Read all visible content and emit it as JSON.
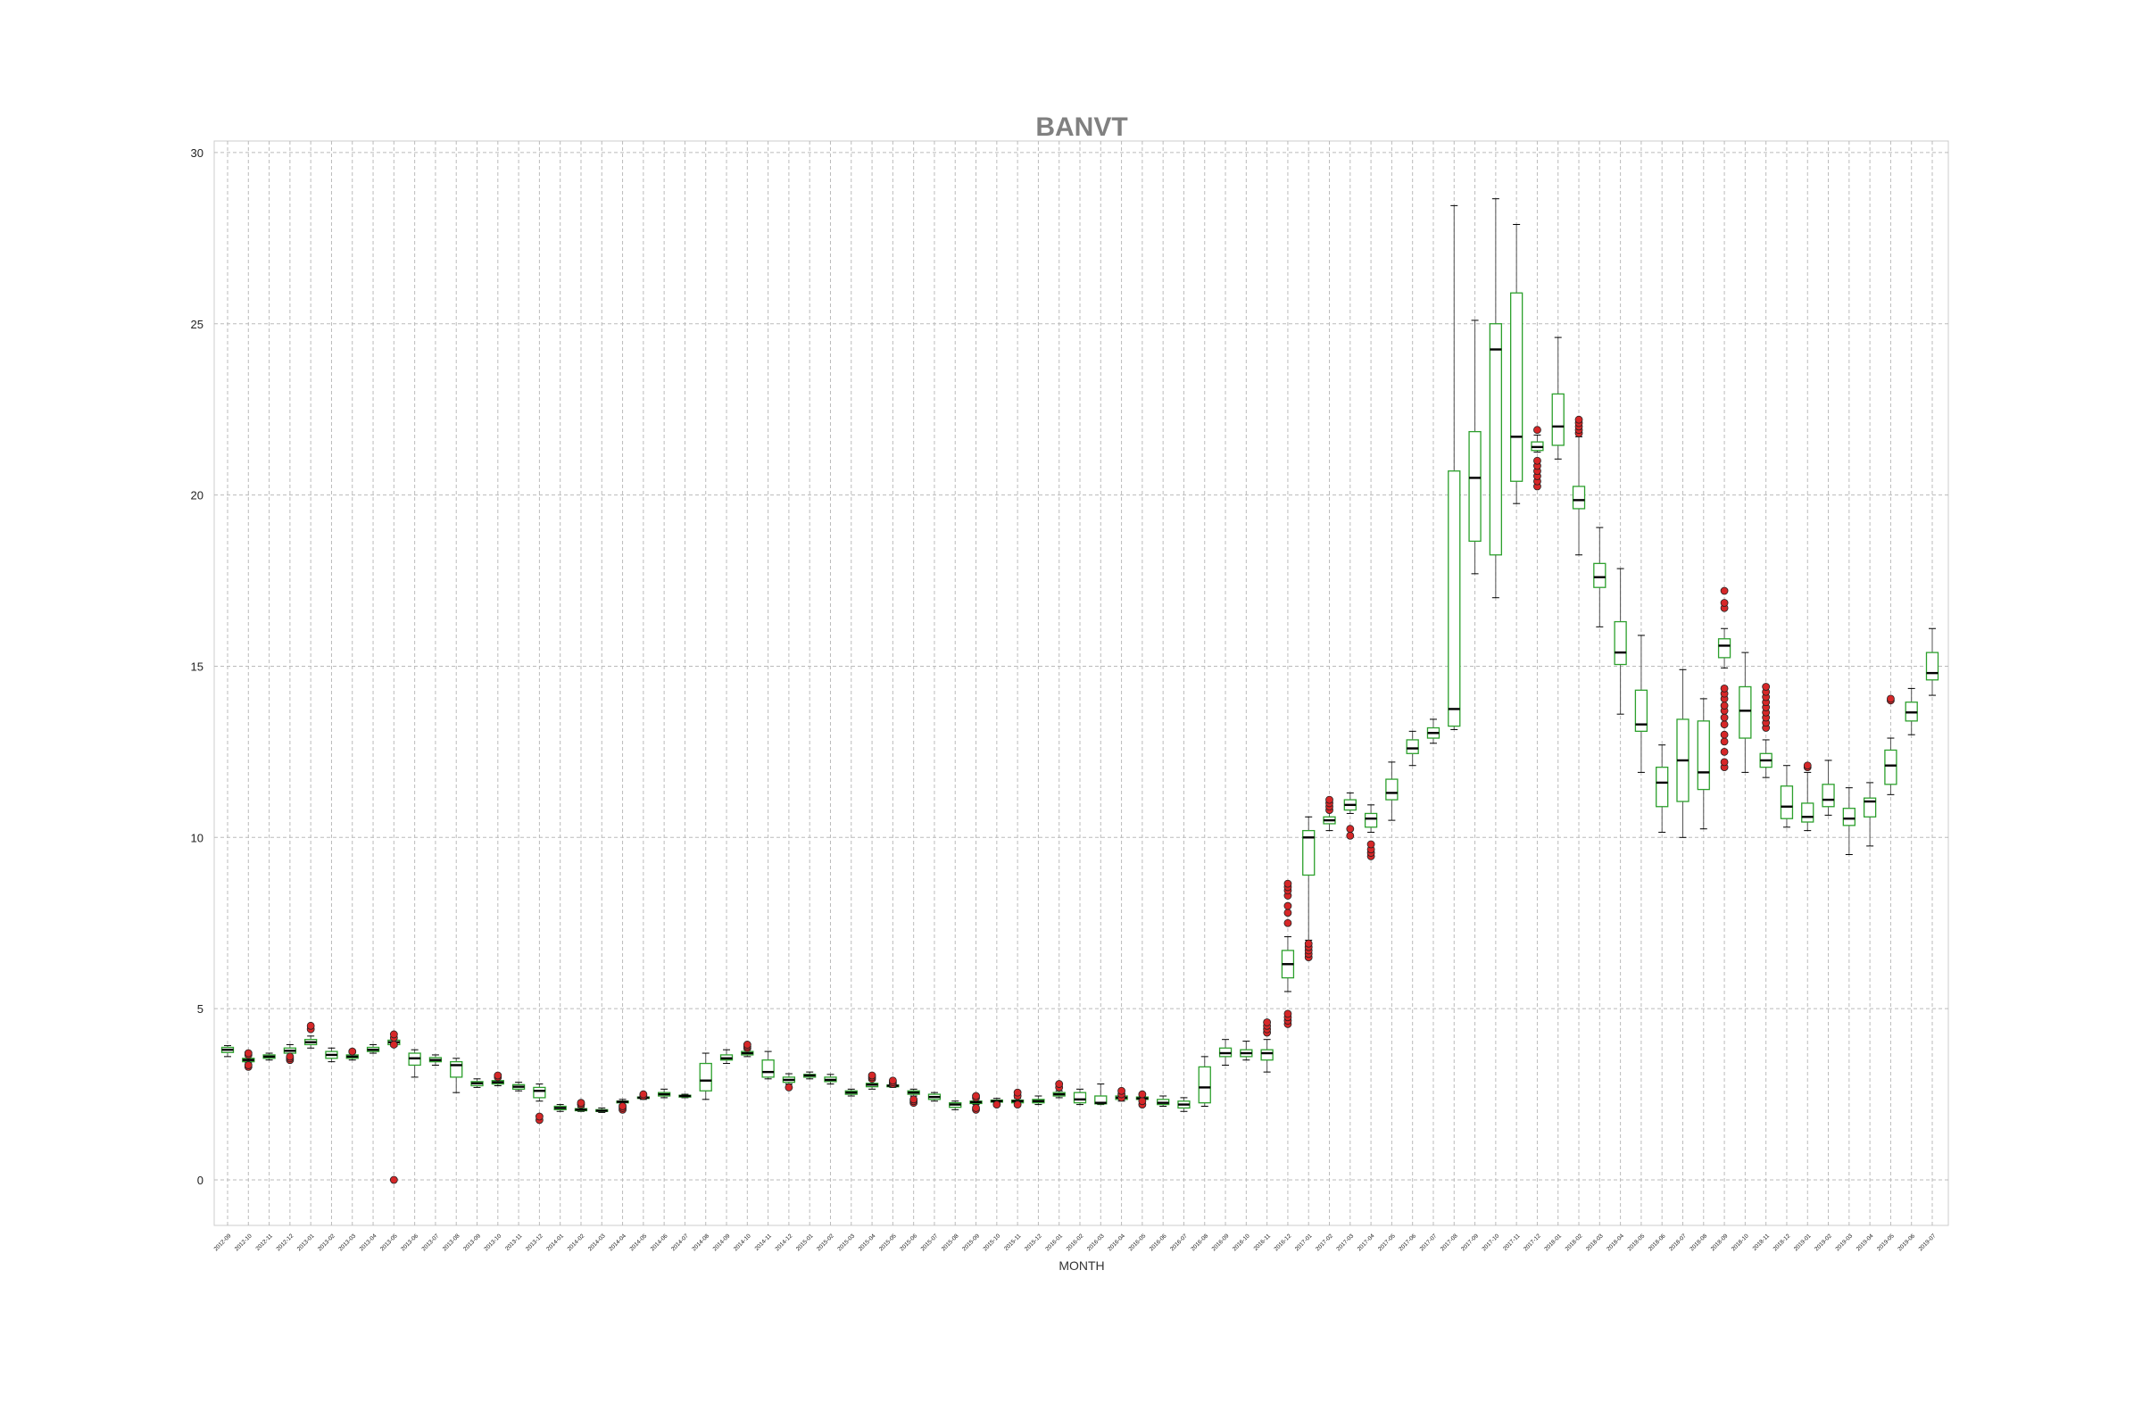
{
  "chart_data": {
    "type": "box",
    "title": "BANVT",
    "xlabel": "MONTH",
    "ylabel": "",
    "ylim": [
      -1.5,
      30.2
    ],
    "yticks": [
      0,
      5,
      10,
      15,
      20,
      25,
      30
    ],
    "grid": true,
    "colors": {
      "box": "#2ca02c",
      "median": "#000000",
      "whisker": "#555555",
      "outlier_fill": "#d62728",
      "outlier_edge": "#222222",
      "grid": "#bbbbbb",
      "title": "#808080"
    },
    "categories": [
      "2012-09",
      "2012-10",
      "2012-11",
      "2012-12",
      "2013-01",
      "2013-02",
      "2013-03",
      "2013-04",
      "2013-05",
      "2013-06",
      "2013-07",
      "2013-08",
      "2013-09",
      "2013-10",
      "2013-11",
      "2013-12",
      "2014-01",
      "2014-02",
      "2014-03",
      "2014-04",
      "2014-05",
      "2014-06",
      "2014-07",
      "2014-08",
      "2014-09",
      "2014-10",
      "2014-11",
      "2014-12",
      "2015-01",
      "2015-02",
      "2015-03",
      "2015-04",
      "2015-05",
      "2015-06",
      "2015-07",
      "2015-08",
      "2015-09",
      "2015-10",
      "2015-11",
      "2015-12",
      "2016-01",
      "2016-02",
      "2016-03",
      "2016-04",
      "2016-05",
      "2016-06",
      "2016-07",
      "2016-08",
      "2016-09",
      "2016-10",
      "2016-11",
      "2016-12",
      "2017-01",
      "2017-02",
      "2017-03",
      "2017-04",
      "2017-05",
      "2017-06",
      "2017-07",
      "2017-08",
      "2017-09",
      "2017-10",
      "2017-11",
      "2017-12",
      "2018-01",
      "2018-02",
      "2018-03",
      "2018-04",
      "2018-05",
      "2018-06",
      "2018-07",
      "2018-08",
      "2018-09",
      "2018-10",
      "2018-11",
      "2018-12",
      "2019-01",
      "2019-02",
      "2019-03",
      "2019-04",
      "2019-05",
      "2019-06",
      "2019-07"
    ],
    "boxes": [
      {
        "whislo": 3.6,
        "q1": 3.72,
        "med": 3.8,
        "q3": 3.87,
        "whishi": 3.92,
        "fliers": []
      },
      {
        "whislo": 3.42,
        "q1": 3.45,
        "med": 3.5,
        "q3": 3.55,
        "whishi": 3.6,
        "fliers": [
          3.3,
          3.35,
          3.65,
          3.7
        ]
      },
      {
        "whislo": 3.5,
        "q1": 3.55,
        "med": 3.6,
        "q3": 3.65,
        "whishi": 3.7,
        "fliers": []
      },
      {
        "whislo": 3.6,
        "q1": 3.7,
        "med": 3.77,
        "q3": 3.85,
        "whishi": 3.95,
        "fliers": [
          3.5,
          3.55,
          3.6
        ]
      },
      {
        "whislo": 3.85,
        "q1": 3.95,
        "med": 4.02,
        "q3": 4.1,
        "whishi": 4.2,
        "fliers": [
          4.4,
          4.5
        ]
      },
      {
        "whislo": 3.45,
        "q1": 3.55,
        "med": 3.65,
        "q3": 3.75,
        "whishi": 3.85,
        "fliers": []
      },
      {
        "whislo": 3.5,
        "q1": 3.55,
        "med": 3.6,
        "q3": 3.65,
        "whishi": 3.7,
        "fliers": [
          3.75
        ]
      },
      {
        "whislo": 3.7,
        "q1": 3.75,
        "med": 3.8,
        "q3": 3.87,
        "whishi": 3.95,
        "fliers": []
      },
      {
        "whislo": 3.9,
        "q1": 3.95,
        "med": 4.02,
        "q3": 4.08,
        "whishi": 4.15,
        "fliers": [
          0.0,
          3.95,
          4.15,
          4.25
        ]
      },
      {
        "whislo": 3.0,
        "q1": 3.35,
        "med": 3.55,
        "q3": 3.7,
        "whishi": 3.8,
        "fliers": []
      },
      {
        "whislo": 3.35,
        "q1": 3.45,
        "med": 3.5,
        "q3": 3.57,
        "whishi": 3.65,
        "fliers": []
      },
      {
        "whislo": 2.55,
        "q1": 3.0,
        "med": 3.35,
        "q3": 3.45,
        "whishi": 3.55,
        "fliers": []
      },
      {
        "whislo": 2.7,
        "q1": 2.75,
        "med": 2.82,
        "q3": 2.87,
        "whishi": 2.95,
        "fliers": []
      },
      {
        "whislo": 2.75,
        "q1": 2.8,
        "med": 2.85,
        "q3": 2.9,
        "whishi": 2.95,
        "fliers": [
          3.0,
          3.05
        ]
      },
      {
        "whislo": 2.6,
        "q1": 2.65,
        "med": 2.72,
        "q3": 2.78,
        "whishi": 2.85,
        "fliers": []
      },
      {
        "whislo": 2.3,
        "q1": 2.4,
        "med": 2.6,
        "q3": 2.7,
        "whishi": 2.8,
        "fliers": [
          1.75,
          1.85
        ]
      },
      {
        "whislo": 2.0,
        "q1": 2.05,
        "med": 2.1,
        "q3": 2.15,
        "whishi": 2.2,
        "fliers": []
      },
      {
        "whislo": 2.0,
        "q1": 2.02,
        "med": 2.05,
        "q3": 2.08,
        "whishi": 2.12,
        "fliers": [
          2.2,
          2.25
        ]
      },
      {
        "whislo": 1.97,
        "q1": 2.0,
        "med": 2.02,
        "q3": 2.05,
        "whishi": 2.1,
        "fliers": []
      },
      {
        "whislo": 2.2,
        "q1": 2.25,
        "med": 2.28,
        "q3": 2.3,
        "whishi": 2.35,
        "fliers": [
          2.05,
          2.1,
          2.15
        ]
      },
      {
        "whislo": 2.35,
        "q1": 2.38,
        "med": 2.4,
        "q3": 2.42,
        "whishi": 2.45,
        "fliers": [
          2.45,
          2.5
        ]
      },
      {
        "whislo": 2.4,
        "q1": 2.45,
        "med": 2.5,
        "q3": 2.55,
        "whishi": 2.65,
        "fliers": []
      },
      {
        "whislo": 2.4,
        "q1": 2.42,
        "med": 2.45,
        "q3": 2.47,
        "whishi": 2.5,
        "fliers": []
      },
      {
        "whislo": 2.35,
        "q1": 2.6,
        "med": 2.9,
        "q3": 3.4,
        "whishi": 3.7,
        "fliers": []
      },
      {
        "whislo": 3.4,
        "q1": 3.5,
        "med": 3.55,
        "q3": 3.65,
        "whishi": 3.8,
        "fliers": []
      },
      {
        "whislo": 3.6,
        "q1": 3.65,
        "med": 3.7,
        "q3": 3.75,
        "whishi": 3.8,
        "fliers": [
          3.85,
          3.9,
          3.95
        ]
      },
      {
        "whislo": 2.95,
        "q1": 3.0,
        "med": 3.15,
        "q3": 3.5,
        "whishi": 3.75,
        "fliers": []
      },
      {
        "whislo": 2.8,
        "q1": 2.85,
        "med": 2.92,
        "q3": 3.0,
        "whishi": 3.1,
        "fliers": [
          2.7
        ]
      },
      {
        "whislo": 2.95,
        "q1": 3.0,
        "med": 3.05,
        "q3": 3.08,
        "whishi": 3.15,
        "fliers": []
      },
      {
        "whislo": 2.8,
        "q1": 2.87,
        "med": 2.92,
        "q3": 3.0,
        "whishi": 3.08,
        "fliers": []
      },
      {
        "whislo": 2.45,
        "q1": 2.5,
        "med": 2.55,
        "q3": 2.6,
        "whishi": 2.65,
        "fliers": []
      },
      {
        "whislo": 2.65,
        "q1": 2.72,
        "med": 2.78,
        "q3": 2.82,
        "whishi": 2.9,
        "fliers": [
          2.95,
          3.0,
          3.05
        ]
      },
      {
        "whislo": 2.7,
        "q1": 2.72,
        "med": 2.75,
        "q3": 2.77,
        "whishi": 2.8,
        "fliers": [
          2.8,
          2.85,
          2.9
        ]
      },
      {
        "whislo": 2.45,
        "q1": 2.5,
        "med": 2.55,
        "q3": 2.6,
        "whishi": 2.65,
        "fliers": [
          2.25,
          2.3,
          2.35
        ]
      },
      {
        "whislo": 2.3,
        "q1": 2.35,
        "med": 2.42,
        "q3": 2.5,
        "whishi": 2.55,
        "fliers": []
      },
      {
        "whislo": 2.05,
        "q1": 2.12,
        "med": 2.2,
        "q3": 2.25,
        "whishi": 2.3,
        "fliers": []
      },
      {
        "whislo": 2.2,
        "q1": 2.23,
        "med": 2.27,
        "q3": 2.3,
        "whishi": 2.35,
        "fliers": [
          2.05,
          2.1,
          2.4,
          2.45
        ]
      },
      {
        "whislo": 2.25,
        "q1": 2.27,
        "med": 2.3,
        "q3": 2.33,
        "whishi": 2.38,
        "fliers": [
          2.2
        ]
      },
      {
        "whislo": 2.2,
        "q1": 2.25,
        "med": 2.3,
        "q3": 2.33,
        "whishi": 2.38,
        "fliers": [
          2.2,
          2.45,
          2.55
        ]
      },
      {
        "whislo": 2.2,
        "q1": 2.25,
        "med": 2.3,
        "q3": 2.35,
        "whishi": 2.45,
        "fliers": []
      },
      {
        "whislo": 2.4,
        "q1": 2.45,
        "med": 2.5,
        "q3": 2.55,
        "whishi": 2.6,
        "fliers": [
          2.7,
          2.8
        ]
      },
      {
        "whislo": 2.2,
        "q1": 2.25,
        "med": 2.35,
        "q3": 2.55,
        "whishi": 2.65,
        "fliers": []
      },
      {
        "whislo": 2.2,
        "q1": 2.22,
        "med": 2.25,
        "q3": 2.45,
        "whishi": 2.8,
        "fliers": []
      },
      {
        "whislo": 2.3,
        "q1": 2.35,
        "med": 2.4,
        "q3": 2.45,
        "whishi": 2.5,
        "fliers": [
          2.4,
          2.5,
          2.6
        ]
      },
      {
        "whislo": 2.3,
        "q1": 2.35,
        "med": 2.38,
        "q3": 2.42,
        "whishi": 2.45,
        "fliers": [
          2.2,
          2.3,
          2.5
        ]
      },
      {
        "whislo": 2.15,
        "q1": 2.2,
        "med": 2.25,
        "q3": 2.35,
        "whishi": 2.45,
        "fliers": []
      },
      {
        "whislo": 2.0,
        "q1": 2.1,
        "med": 2.2,
        "q3": 2.3,
        "whishi": 2.4,
        "fliers": []
      },
      {
        "whislo": 2.15,
        "q1": 2.25,
        "med": 2.7,
        "q3": 3.3,
        "whishi": 3.6,
        "fliers": []
      },
      {
        "whislo": 3.35,
        "q1": 3.6,
        "med": 3.7,
        "q3": 3.85,
        "whishi": 4.1,
        "fliers": []
      },
      {
        "whislo": 3.5,
        "q1": 3.6,
        "med": 3.7,
        "q3": 3.8,
        "whishi": 4.05,
        "fliers": []
      },
      {
        "whislo": 3.15,
        "q1": 3.5,
        "med": 3.7,
        "q3": 3.8,
        "whishi": 4.1,
        "fliers": [
          4.3,
          4.4,
          4.5,
          4.6
        ]
      },
      {
        "whislo": 5.5,
        "q1": 5.9,
        "med": 6.3,
        "q3": 6.7,
        "whishi": 7.1,
        "fliers": [
          4.55,
          4.65,
          4.75,
          4.85,
          7.5,
          7.8,
          8.0,
          8.3,
          8.45,
          8.55,
          8.65
        ]
      },
      {
        "whislo": 7.0,
        "q1": 8.9,
        "med": 10.0,
        "q3": 10.2,
        "whishi": 10.6,
        "fliers": [
          6.5,
          6.6,
          6.7,
          6.8,
          6.9
        ]
      },
      {
        "whislo": 10.2,
        "q1": 10.4,
        "med": 10.5,
        "q3": 10.6,
        "whishi": 10.8,
        "fliers": [
          10.8,
          10.9,
          11.0,
          11.1
        ]
      },
      {
        "whislo": 10.7,
        "q1": 10.8,
        "med": 10.95,
        "q3": 11.1,
        "whishi": 11.3,
        "fliers": [
          10.05,
          10.25
        ]
      },
      {
        "whislo": 10.15,
        "q1": 10.3,
        "med": 10.55,
        "q3": 10.7,
        "whishi": 10.95,
        "fliers": [
          9.45,
          9.55,
          9.65,
          9.8
        ]
      },
      {
        "whislo": 10.5,
        "q1": 11.1,
        "med": 11.3,
        "q3": 11.7,
        "whishi": 12.2,
        "fliers": []
      },
      {
        "whislo": 12.1,
        "q1": 12.45,
        "med": 12.6,
        "q3": 12.85,
        "whishi": 13.1,
        "fliers": []
      },
      {
        "whislo": 12.75,
        "q1": 12.9,
        "med": 13.05,
        "q3": 13.2,
        "whishi": 13.45,
        "fliers": []
      },
      {
        "whislo": 13.15,
        "q1": 13.25,
        "med": 13.75,
        "q3": 20.7,
        "whishi": 28.45,
        "fliers": []
      },
      {
        "whislo": 17.7,
        "q1": 18.65,
        "med": 20.5,
        "q3": 21.85,
        "whishi": 25.1,
        "fliers": []
      },
      {
        "whislo": 17.0,
        "q1": 18.25,
        "med": 24.25,
        "q3": 25.0,
        "whishi": 28.65,
        "fliers": []
      },
      {
        "whislo": 19.75,
        "q1": 20.4,
        "med": 21.7,
        "q3": 25.9,
        "whishi": 27.9,
        "fliers": []
      },
      {
        "whislo": 21.25,
        "q1": 21.3,
        "med": 21.4,
        "q3": 21.55,
        "whishi": 21.75,
        "fliers": [
          20.25,
          20.4,
          20.55,
          20.7,
          20.85,
          21.0,
          21.9
        ]
      },
      {
        "whislo": 21.05,
        "q1": 21.45,
        "med": 22.0,
        "q3": 22.95,
        "whishi": 24.6,
        "fliers": []
      },
      {
        "whislo": 18.25,
        "q1": 19.6,
        "med": 19.85,
        "q3": 20.25,
        "whishi": 21.7,
        "fliers": [
          21.8,
          21.9,
          22.0,
          22.1,
          22.2
        ]
      },
      {
        "whislo": 16.15,
        "q1": 17.3,
        "med": 17.6,
        "q3": 18.0,
        "whishi": 19.05,
        "fliers": []
      },
      {
        "whislo": 13.6,
        "q1": 15.05,
        "med": 15.4,
        "q3": 16.3,
        "whishi": 17.85,
        "fliers": []
      },
      {
        "whislo": 11.9,
        "q1": 13.1,
        "med": 13.3,
        "q3": 14.3,
        "whishi": 15.9,
        "fliers": []
      },
      {
        "whislo": 10.15,
        "q1": 10.9,
        "med": 11.6,
        "q3": 12.05,
        "whishi": 12.7,
        "fliers": []
      },
      {
        "whislo": 10.0,
        "q1": 11.05,
        "med": 12.25,
        "q3": 13.45,
        "whishi": 14.9,
        "fliers": []
      },
      {
        "whislo": 10.25,
        "q1": 11.4,
        "med": 11.9,
        "q3": 13.4,
        "whishi": 14.05,
        "fliers": []
      },
      {
        "whislo": 14.95,
        "q1": 15.25,
        "med": 15.6,
        "q3": 15.8,
        "whishi": 16.1,
        "fliers": [
          12.05,
          12.2,
          12.5,
          12.8,
          13.0,
          13.3,
          13.5,
          13.7,
          13.85,
          14.05,
          14.2,
          14.35,
          16.7,
          16.85,
          17.2
        ]
      },
      {
        "whislo": 11.9,
        "q1": 12.9,
        "med": 13.7,
        "q3": 14.4,
        "whishi": 15.4,
        "fliers": []
      },
      {
        "whislo": 11.75,
        "q1": 12.05,
        "med": 12.25,
        "q3": 12.45,
        "whishi": 12.85,
        "fliers": [
          13.2,
          13.35,
          13.5,
          13.65,
          13.8,
          13.95,
          14.1,
          14.25,
          14.4
        ]
      },
      {
        "whislo": 10.3,
        "q1": 10.55,
        "med": 10.9,
        "q3": 11.5,
        "whishi": 12.1,
        "fliers": []
      },
      {
        "whislo": 10.2,
        "q1": 10.45,
        "med": 10.6,
        "q3": 11.0,
        "whishi": 11.9,
        "fliers": [
          12.05,
          12.1
        ]
      },
      {
        "whislo": 10.65,
        "q1": 10.9,
        "med": 11.1,
        "q3": 11.55,
        "whishi": 12.25,
        "fliers": []
      },
      {
        "whislo": 9.5,
        "q1": 10.35,
        "med": 10.55,
        "q3": 10.85,
        "whishi": 11.45,
        "fliers": []
      },
      {
        "whislo": 9.75,
        "q1": 10.6,
        "med": 11.05,
        "q3": 11.15,
        "whishi": 11.6,
        "fliers": []
      },
      {
        "whislo": 11.25,
        "q1": 11.55,
        "med": 12.1,
        "q3": 12.55,
        "whishi": 12.9,
        "fliers": [
          14.0,
          14.05
        ]
      },
      {
        "whislo": 13.0,
        "q1": 13.4,
        "med": 13.65,
        "q3": 13.95,
        "whishi": 14.35,
        "fliers": []
      },
      {
        "whislo": 14.15,
        "q1": 14.6,
        "med": 14.8,
        "q3": 15.4,
        "whishi": 16.1,
        "fliers": []
      }
    ]
  }
}
